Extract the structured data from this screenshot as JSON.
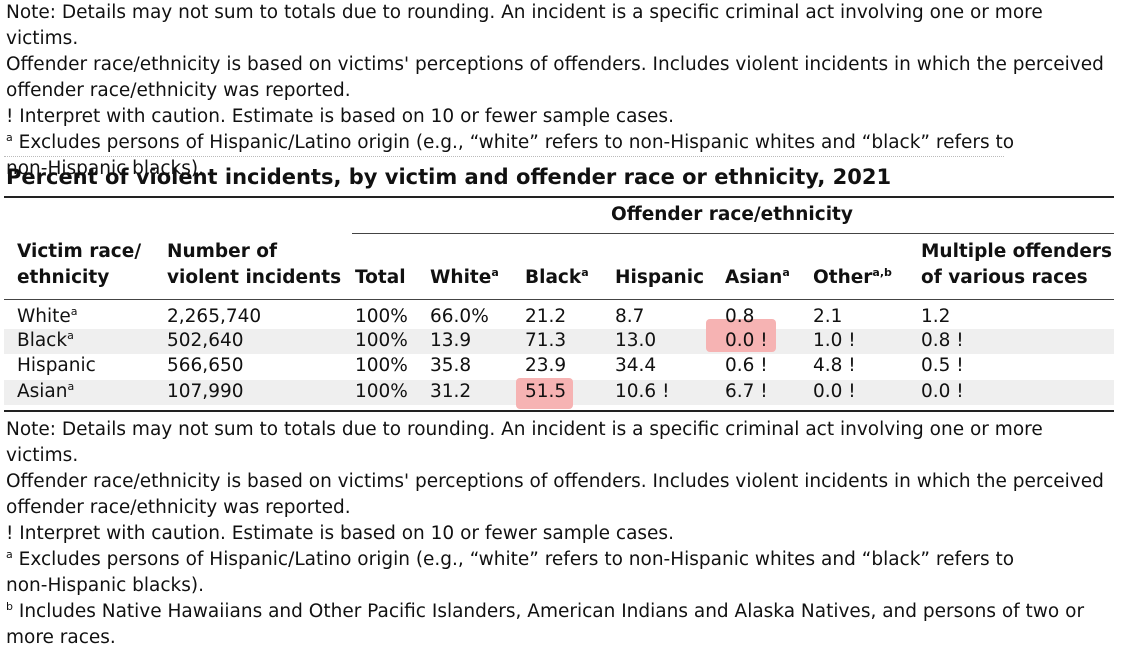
{
  "top_note": {
    "lines": [
      "Note: Details may not sum to totals due to rounding. An incident is a specific criminal act involving one or more victims.",
      "Offender race/ethnicity is based on victims' perceptions of offenders. Includes violent incidents in which the perceived",
      "offender race/ethnicity was reported.",
      "! Interpret with caution. Estimate is based on 10 or fewer sample cases."
    ],
    "footnote_a_marker": "a",
    "footnote_a_line1": "Excludes persons of Hispanic/Latino origin (e.g., “white” refers to non-Hispanic whites and “black” refers to",
    "footnote_a_line2": "non-Hispanic blacks)."
  },
  "table": {
    "title": "Percent of violent incidents, by victim and offender race or ethnicity, 2021",
    "spanner": "Offender race/ethnicity",
    "headers": {
      "victim_line1": "Victim race/",
      "victim_line2": "ethnicity",
      "number_line1": "Number of",
      "number_line2": "violent incidents",
      "total": "Total",
      "white": "White",
      "black": "Black",
      "hispanic": "Hispanic",
      "asian": "Asian",
      "other": "Other",
      "multiple_line1": "Multiple offenders",
      "multiple_line2": "of various races",
      "sup_a": "a",
      "sup_ab": "a,b"
    },
    "rows": [
      {
        "victim": "White",
        "victim_sup": "a",
        "number": "2,265,740",
        "total": "100%",
        "white": "66.0%",
        "black": "21.2",
        "hispanic": "8.7",
        "asian": "0.8",
        "other": "2.1",
        "multiple": "1.2"
      },
      {
        "victim": "Black",
        "victim_sup": "a",
        "number": "502,640",
        "total": "100%",
        "white": "13.9",
        "black": "71.3",
        "hispanic": "13.0",
        "asian": "0.0 !",
        "other": "1.0 !",
        "multiple": "0.8 !"
      },
      {
        "victim": "Hispanic",
        "victim_sup": "",
        "number": "566,650",
        "total": "100%",
        "white": "35.8",
        "black": "23.9",
        "hispanic": "34.4",
        "asian": "0.6 !",
        "other": "4.8 !",
        "multiple": "0.5 !"
      },
      {
        "victim": "Asian",
        "victim_sup": "a",
        "number": "107,990",
        "total": "100%",
        "white": "31.2",
        "black": "51.5",
        "hispanic": "10.6 !",
        "asian": "6.7 !",
        "other": "0.0 !",
        "multiple": "0.0 !"
      }
    ],
    "highlight_color": "#f6b3b3"
  },
  "bottom_note": {
    "lines": [
      "Note: Details may not sum to totals due to rounding. An incident is a specific criminal act involving one or more victims.",
      "Offender race/ethnicity is based on victims' perceptions of offenders. Includes violent incidents in which the perceived",
      "offender race/ethnicity was reported.",
      "! Interpret with caution. Estimate is based on 10 or fewer sample cases."
    ],
    "footnote_a_marker": "a",
    "footnote_a_line1": "Excludes persons of Hispanic/Latino origin (e.g., “white” refers to non-Hispanic whites and “black” refers to",
    "footnote_a_line2": "non-Hispanic blacks).",
    "footnote_b_marker": "b",
    "footnote_b_line1": "Includes Native Hawaiians and Other Pacific Islanders, American Indians and Alaska Natives, and persons of two or",
    "footnote_b_line2": "more races."
  }
}
